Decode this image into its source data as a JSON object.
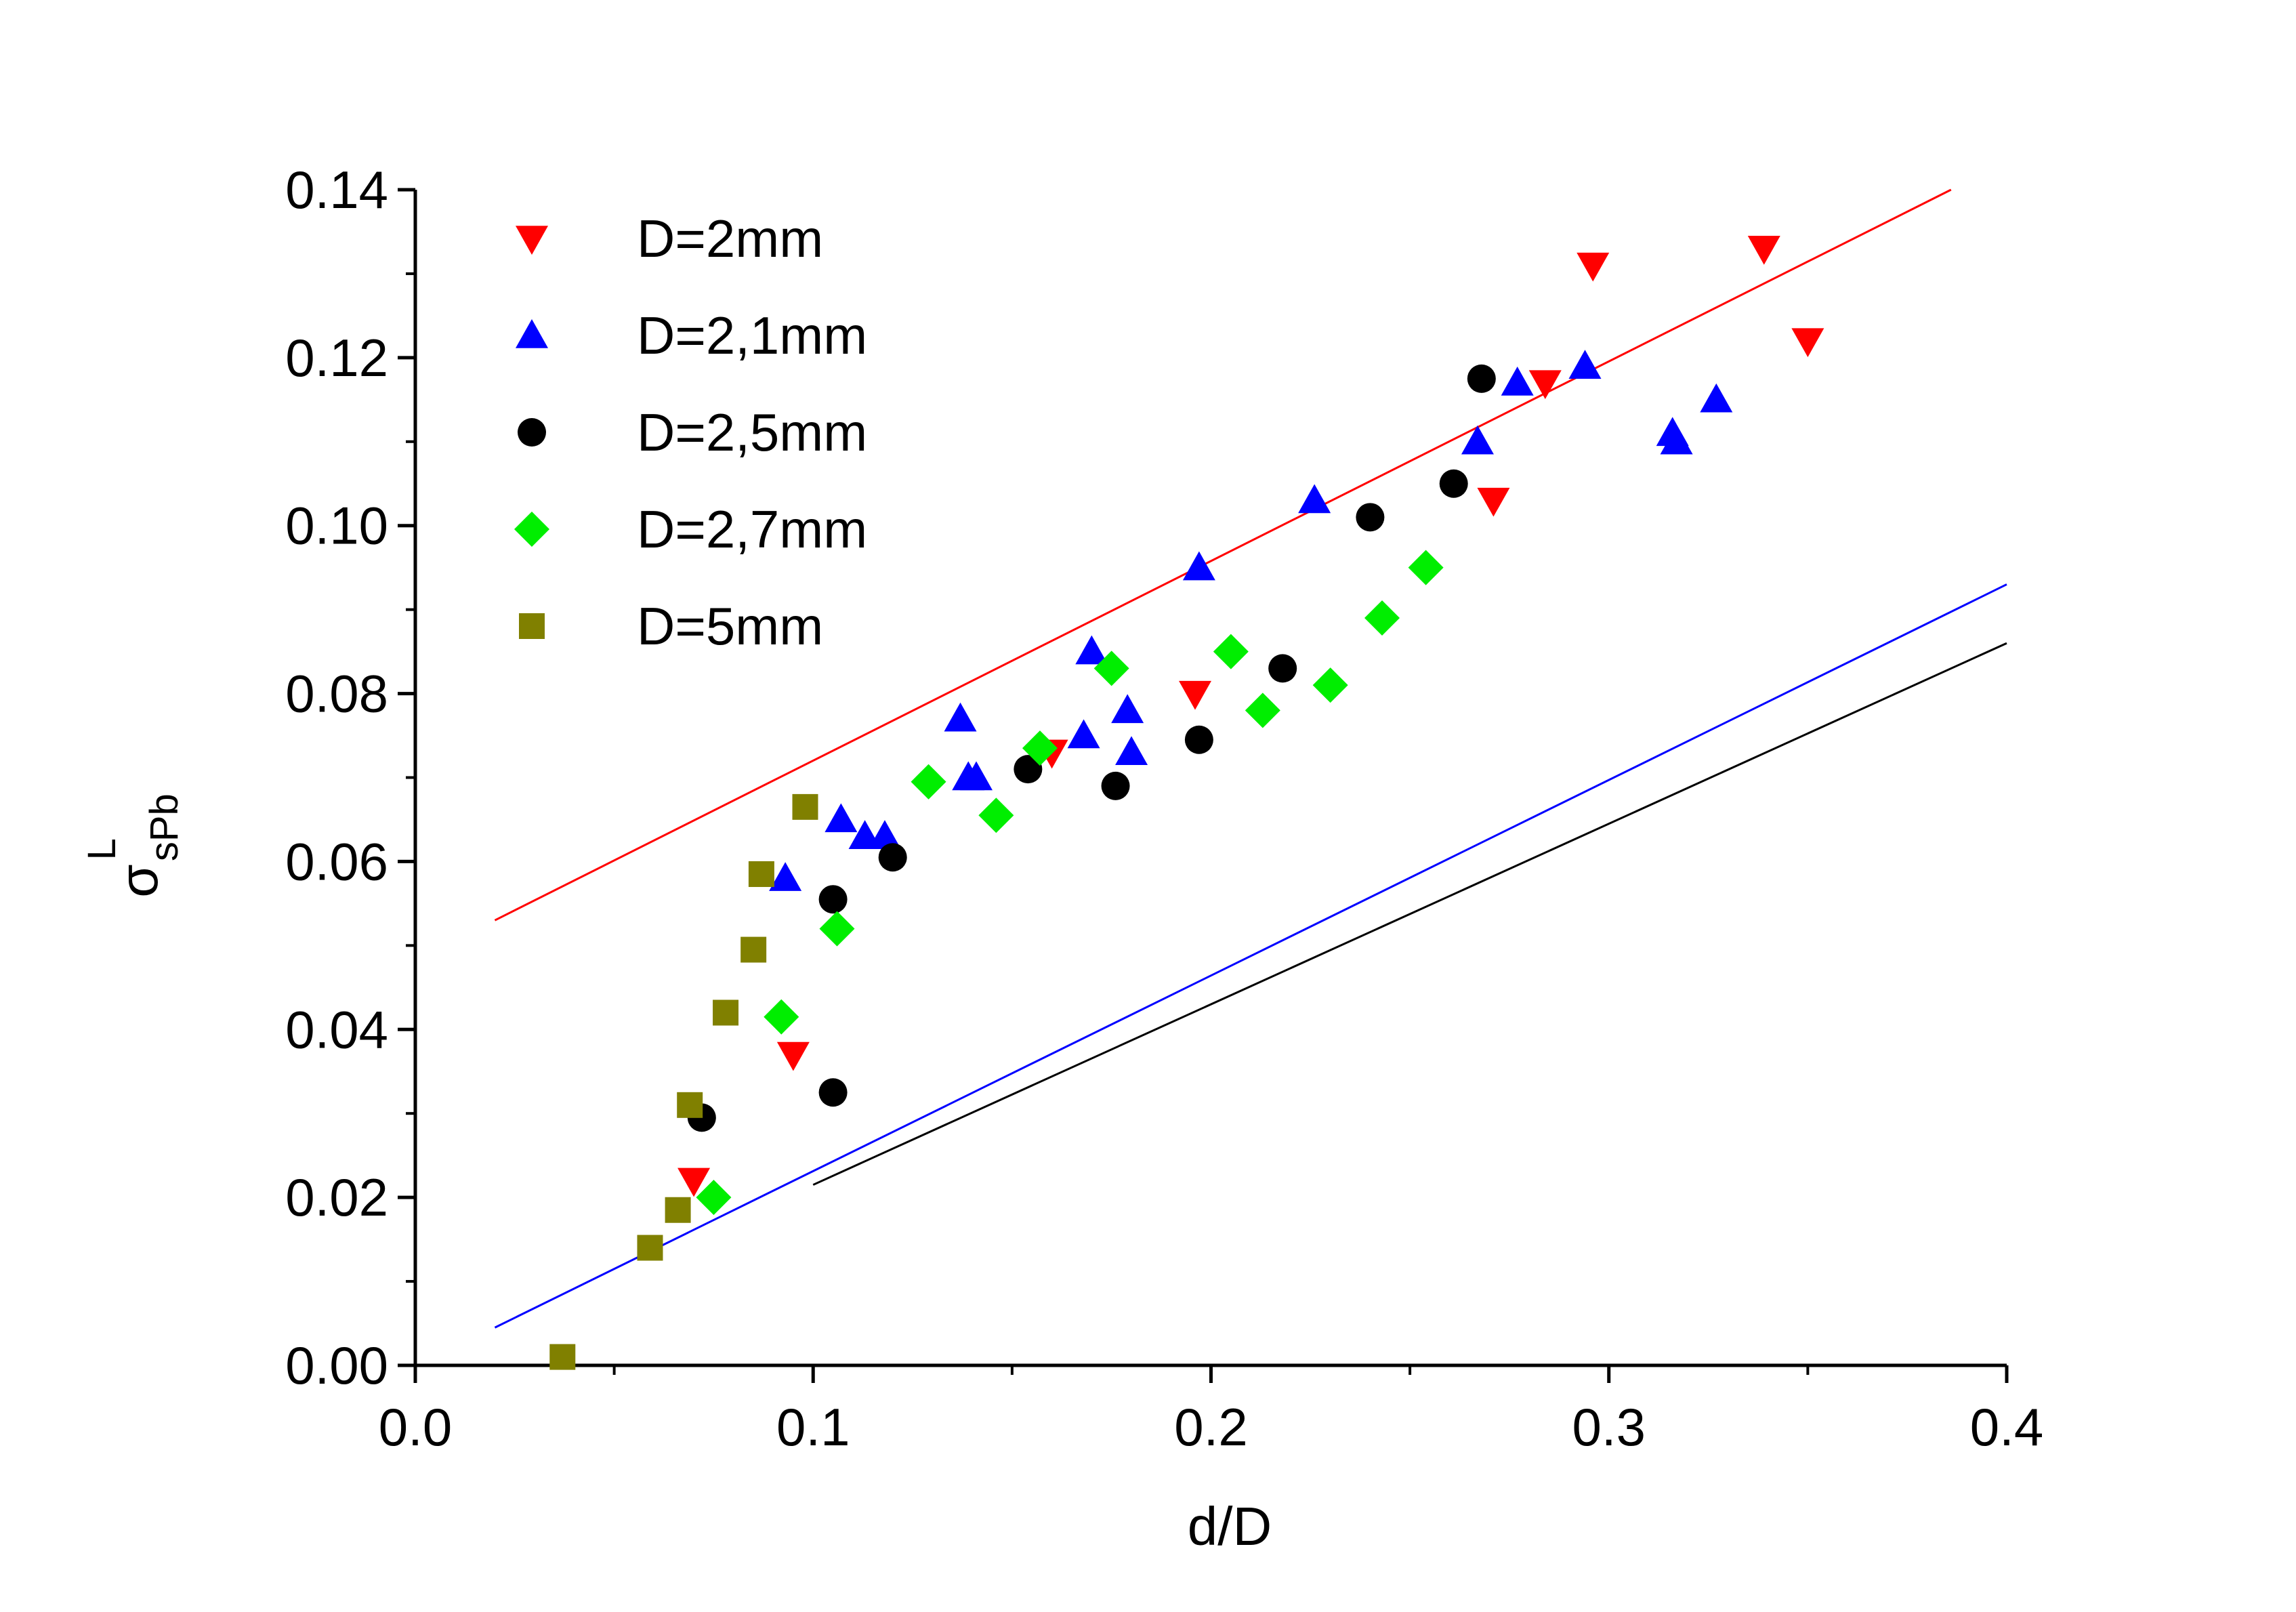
{
  "chart_data": {
    "type": "scatter",
    "xlabel": "d/D",
    "ylabel": {
      "base": "σ",
      "superscript": "L",
      "subscript": "sPb"
    },
    "xlim": [
      0.0,
      0.4
    ],
    "ylim": [
      0.0,
      0.14
    ],
    "xticks": [
      "0.0",
      "0.1",
      "0.2",
      "0.3",
      "0.4"
    ],
    "yticks": [
      "0.00",
      "0.02",
      "0.04",
      "0.06",
      "0.08",
      "0.10",
      "0.12",
      "0.14"
    ],
    "xtick_values": [
      0.0,
      0.1,
      0.2,
      0.3,
      0.4
    ],
    "ytick_values": [
      0.0,
      0.02,
      0.04,
      0.06,
      0.08,
      0.1,
      0.12,
      0.14
    ],
    "legend_position": "top-left",
    "series": [
      {
        "name": "D=2mm",
        "marker": "triangle-down",
        "color": "#ff0000",
        "points": [
          [
            0.07,
            0.022
          ],
          [
            0.095,
            0.037
          ],
          [
            0.16,
            0.073
          ],
          [
            0.196,
            0.08
          ],
          [
            0.271,
            0.103
          ],
          [
            0.284,
            0.117
          ],
          [
            0.296,
            0.131
          ],
          [
            0.339,
            0.133
          ],
          [
            0.35,
            0.122
          ]
        ]
      },
      {
        "name": "D=2,1mm",
        "marker": "triangle-up",
        "color": "#0000ff",
        "points": [
          [
            0.093,
            0.058
          ],
          [
            0.107,
            0.065
          ],
          [
            0.113,
            0.063
          ],
          [
            0.118,
            0.063
          ],
          [
            0.137,
            0.077
          ],
          [
            0.139,
            0.07
          ],
          [
            0.141,
            0.07
          ],
          [
            0.168,
            0.075
          ],
          [
            0.17,
            0.085
          ],
          [
            0.179,
            0.078
          ],
          [
            0.18,
            0.073
          ],
          [
            0.197,
            0.095
          ],
          [
            0.226,
            0.103
          ],
          [
            0.267,
            0.11
          ],
          [
            0.277,
            0.117
          ],
          [
            0.294,
            0.119
          ],
          [
            0.316,
            0.111
          ],
          [
            0.317,
            0.11
          ],
          [
            0.327,
            0.115
          ]
        ]
      },
      {
        "name": "D=2,5mm",
        "marker": "circle",
        "color": "#000000",
        "points": [
          [
            0.072,
            0.0295
          ],
          [
            0.105,
            0.0325
          ],
          [
            0.105,
            0.0555
          ],
          [
            0.12,
            0.0605
          ],
          [
            0.154,
            0.071
          ],
          [
            0.176,
            0.069
          ],
          [
            0.197,
            0.0745
          ],
          [
            0.218,
            0.083
          ],
          [
            0.24,
            0.101
          ],
          [
            0.261,
            0.105
          ],
          [
            0.268,
            0.1175
          ]
        ]
      },
      {
        "name": "D=2,7mm",
        "marker": "diamond",
        "color": "#00ee00",
        "points": [
          [
            0.075,
            0.02
          ],
          [
            0.092,
            0.0415
          ],
          [
            0.106,
            0.052
          ],
          [
            0.129,
            0.0695
          ],
          [
            0.146,
            0.0655
          ],
          [
            0.157,
            0.0735
          ],
          [
            0.175,
            0.083
          ],
          [
            0.205,
            0.085
          ],
          [
            0.213,
            0.078
          ],
          [
            0.23,
            0.081
          ],
          [
            0.243,
            0.089
          ],
          [
            0.254,
            0.095
          ]
        ]
      },
      {
        "name": "D=5mm",
        "marker": "square",
        "color": "#808000",
        "points": [
          [
            0.037,
            0.001
          ],
          [
            0.059,
            0.014
          ],
          [
            0.066,
            0.0185
          ],
          [
            0.069,
            0.031
          ],
          [
            0.078,
            0.042
          ],
          [
            0.085,
            0.0495
          ],
          [
            0.087,
            0.0585
          ],
          [
            0.098,
            0.0665
          ]
        ]
      }
    ],
    "lines": [
      {
        "name": "red-fit-line",
        "color": "#ff0000",
        "x": [
          0.02,
          0.386
        ],
        "y": [
          0.053,
          0.14
        ]
      },
      {
        "name": "blue-fit-line",
        "color": "#0000ff",
        "x": [
          0.02,
          0.4
        ],
        "y": [
          0.0045,
          0.093
        ]
      },
      {
        "name": "black-fit-line",
        "color": "#000000",
        "x": [
          0.1,
          0.4
        ],
        "y": [
          0.0215,
          0.086
        ]
      }
    ]
  }
}
